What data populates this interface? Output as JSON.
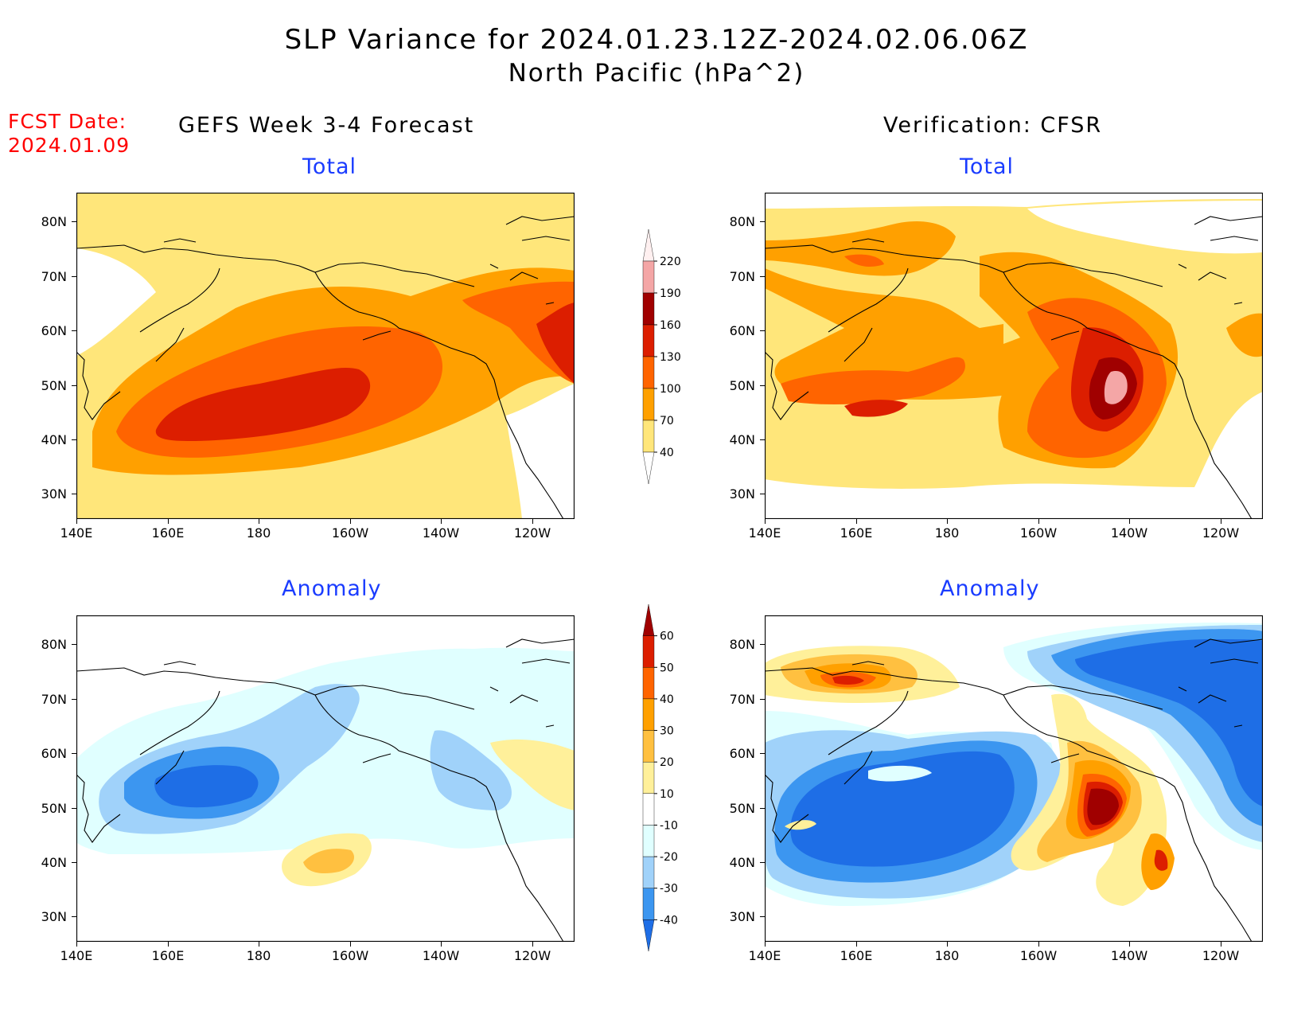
{
  "header": {
    "title_line1": "SLP Variance for 2024.01.23.12Z-2024.02.06.06Z",
    "title_line2": "North Pacific (hPa^2)",
    "fcst_label": "FCST Date:",
    "fcst_date": "2024.01.09"
  },
  "columns": {
    "left": "GEFS Week 3-4 Forecast",
    "right": "Verification: CFSR"
  },
  "panel_titles": {
    "total": "Total",
    "anomaly": "Anomaly"
  },
  "axes": {
    "lat_labels": [
      "80N",
      "70N",
      "60N",
      "50N",
      "40N",
      "30N"
    ],
    "lon_labels": [
      "140E",
      "160E",
      "180",
      "160W",
      "140W",
      "120W"
    ]
  },
  "colorbar_total": {
    "levels": [
      "220",
      "190",
      "160",
      "130",
      "100",
      "70",
      "40"
    ],
    "colors": [
      "#fff0f0",
      "#f4a6a6",
      "#a00000",
      "#dc1e00",
      "#ff6400",
      "#ffa000",
      "#ffe67a",
      "#ffffff"
    ]
  },
  "colorbar_anom": {
    "levels": [
      "60",
      "50",
      "40",
      "30",
      "20",
      "10",
      "-10",
      "-20",
      "-30",
      "-40"
    ],
    "colors": [
      "#a00000",
      "#dc1e00",
      "#ff6400",
      "#ffa000",
      "#ffc040",
      "#fff09a",
      "#ffffff",
      "#e0ffff",
      "#a0d2fa",
      "#3c96f0",
      "#1e6ee6"
    ]
  }
}
